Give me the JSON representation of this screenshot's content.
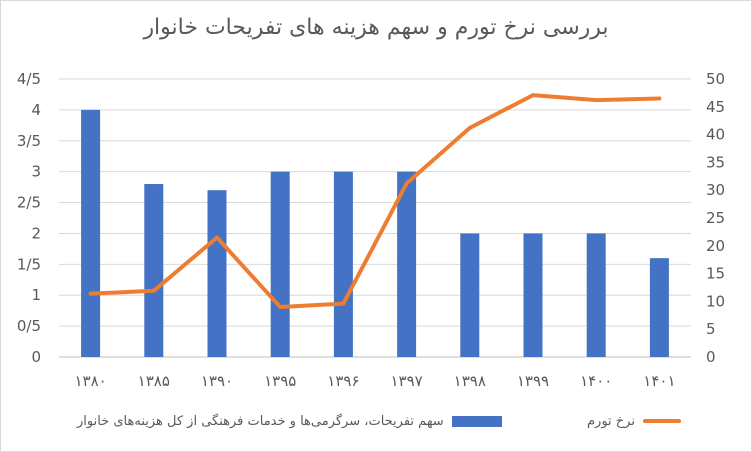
{
  "chart_data": {
    "type": "bar+line",
    "title": "بررسی نرخ تورم و سهم هزینه های تفریحات خانوار",
    "categories": [
      "۱۳۸۰",
      "۱۳۸۵",
      "۱۳۹۰",
      "۱۳۹۵",
      "۱۳۹۶",
      "۱۳۹۷",
      "۱۳۹۸",
      "۱۳۹۹",
      "۱۴۰۰",
      "۱۴۰۱"
    ],
    "series": [
      {
        "name": "سهم تفریحات، سرگرمی‌ها و خدمات فرهنگی از کل هزینه‌های خانوار",
        "type": "bar",
        "axis": "left",
        "color": "#4472c4",
        "values": [
          4,
          2.8,
          2.7,
          3,
          3,
          3,
          2,
          2,
          2,
          1.6
        ]
      },
      {
        "name": "نرخ تورم",
        "type": "line",
        "axis": "right",
        "color": "#ed7d31",
        "values": [
          11.4,
          11.9,
          21.5,
          9.0,
          9.6,
          31.2,
          41.2,
          47.1,
          46.2,
          46.5
        ]
      }
    ],
    "y_left": {
      "min": 0,
      "max": 4.5,
      "ticks": [
        0,
        0.5,
        1,
        1.5,
        2,
        2.5,
        3,
        3.5,
        4,
        4.5
      ],
      "tick_labels": [
        "0",
        "0/5",
        "1",
        "1/5",
        "2",
        "2/5",
        "3",
        "3/5",
        "4",
        "4/5"
      ]
    },
    "y_right": {
      "min": 0,
      "max": 50,
      "ticks": [
        0,
        5,
        10,
        15,
        20,
        25,
        30,
        35,
        40,
        45,
        50
      ],
      "tick_labels": [
        "0",
        "5",
        "10",
        "15",
        "20",
        "25",
        "30",
        "35",
        "40",
        "45",
        "50"
      ]
    },
    "grid": true,
    "legend_position": "bottom"
  }
}
